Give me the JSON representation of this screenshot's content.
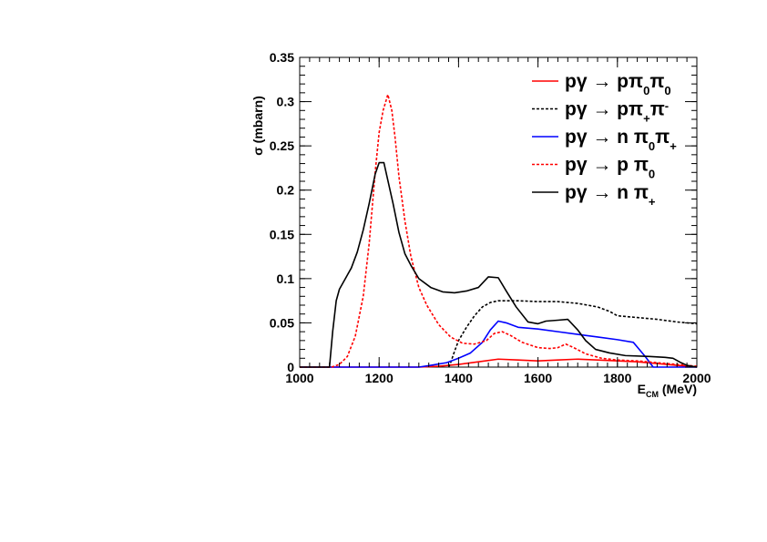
{
  "chart_data": {
    "type": "line",
    "xlabel": {
      "main": "E",
      "sub": "CM",
      "rest": " (MeV)"
    },
    "ylabel": "σ (mbarn)",
    "xlim": [
      1000,
      2000
    ],
    "ylim": [
      0,
      0.35
    ],
    "xticks": [
      1000,
      1200,
      1400,
      1600,
      1800,
      2000
    ],
    "yticks": [
      0,
      0.05,
      0.1,
      0.15,
      0.2,
      0.25,
      0.3,
      0.35
    ],
    "ytick_labels": [
      "0",
      "0.05",
      "0.1",
      "0.15",
      "0.2",
      "0.25",
      "0.3",
      "0.35"
    ],
    "grid": false,
    "legend_position": "top-right",
    "series": [
      {
        "name": "pγ → pπ0π0",
        "legend": {
          "pre": "pγ → pπ",
          "parts": [
            [
              "sub",
              "0"
            ],
            [
              "main",
              "π"
            ],
            [
              "sub",
              "0"
            ]
          ]
        },
        "color": "#ff0000",
        "dash": "solid",
        "points": [
          [
            1000,
            0
          ],
          [
            1300,
            0
          ],
          [
            1350,
            0.001
          ],
          [
            1400,
            0.003
          ],
          [
            1450,
            0.006
          ],
          [
            1500,
            0.009
          ],
          [
            1550,
            0.008
          ],
          [
            1600,
            0.007
          ],
          [
            1650,
            0.008
          ],
          [
            1700,
            0.009
          ],
          [
            1750,
            0.008
          ],
          [
            1800,
            0.007
          ],
          [
            1850,
            0.006
          ],
          [
            1900,
            0.004
          ],
          [
            1950,
            0.002
          ],
          [
            2000,
            0
          ]
        ]
      },
      {
        "name": "pγ → pπ+π-",
        "legend": {
          "pre": "pγ → pπ",
          "parts": [
            [
              "sub",
              "+"
            ],
            [
              "main",
              "π"
            ],
            [
              "sup",
              "-"
            ]
          ]
        },
        "color": "#000000",
        "dash": "dotted",
        "points": [
          [
            1375,
            0
          ],
          [
            1380,
            0.005
          ],
          [
            1390,
            0.018
          ],
          [
            1400,
            0.03
          ],
          [
            1420,
            0.045
          ],
          [
            1440,
            0.058
          ],
          [
            1460,
            0.068
          ],
          [
            1480,
            0.073
          ],
          [
            1500,
            0.075
          ],
          [
            1550,
            0.075
          ],
          [
            1600,
            0.074
          ],
          [
            1650,
            0.074
          ],
          [
            1700,
            0.072
          ],
          [
            1750,
            0.068
          ],
          [
            1780,
            0.063
          ],
          [
            1800,
            0.058
          ],
          [
            1850,
            0.056
          ],
          [
            1900,
            0.054
          ],
          [
            1950,
            0.051
          ],
          [
            2000,
            0.049
          ]
        ]
      },
      {
        "name": "pγ → n π0π+",
        "legend": {
          "pre": "pγ → n π",
          "parts": [
            [
              "sub",
              "0"
            ],
            [
              "main",
              "π"
            ],
            [
              "sub",
              "+"
            ]
          ]
        },
        "color": "#0000ff",
        "dash": "solid",
        "points": [
          [
            1000,
            0
          ],
          [
            1300,
            0
          ],
          [
            1330,
            0.002
          ],
          [
            1370,
            0.005
          ],
          [
            1400,
            0.01
          ],
          [
            1430,
            0.016
          ],
          [
            1460,
            0.028
          ],
          [
            1480,
            0.042
          ],
          [
            1500,
            0.052
          ],
          [
            1520,
            0.05
          ],
          [
            1550,
            0.045
          ],
          [
            1600,
            0.043
          ],
          [
            1650,
            0.04
          ],
          [
            1700,
            0.037
          ],
          [
            1750,
            0.034
          ],
          [
            1800,
            0.031
          ],
          [
            1840,
            0.028
          ],
          [
            1870,
            0.012
          ],
          [
            1890,
            0
          ],
          [
            2000,
            0
          ]
        ]
      },
      {
        "name": "pγ → p π0",
        "legend": {
          "pre": "pγ → p π",
          "parts": [
            [
              "sub",
              "0"
            ]
          ]
        },
        "color": "#ff0000",
        "dash": "dotted",
        "points": [
          [
            1000,
            0
          ],
          [
            1080,
            0
          ],
          [
            1100,
            0.003
          ],
          [
            1120,
            0.012
          ],
          [
            1140,
            0.035
          ],
          [
            1160,
            0.08
          ],
          [
            1175,
            0.14
          ],
          [
            1190,
            0.22
          ],
          [
            1200,
            0.265
          ],
          [
            1210,
            0.29
          ],
          [
            1222,
            0.308
          ],
          [
            1232,
            0.29
          ],
          [
            1240,
            0.26
          ],
          [
            1250,
            0.215
          ],
          [
            1265,
            0.165
          ],
          [
            1280,
            0.125
          ],
          [
            1300,
            0.09
          ],
          [
            1320,
            0.07
          ],
          [
            1350,
            0.048
          ],
          [
            1380,
            0.034
          ],
          [
            1410,
            0.027
          ],
          [
            1440,
            0.026
          ],
          [
            1470,
            0.03
          ],
          [
            1490,
            0.038
          ],
          [
            1510,
            0.04
          ],
          [
            1530,
            0.036
          ],
          [
            1560,
            0.028
          ],
          [
            1600,
            0.022
          ],
          [
            1630,
            0.021
          ],
          [
            1650,
            0.022
          ],
          [
            1670,
            0.026
          ],
          [
            1690,
            0.022
          ],
          [
            1720,
            0.015
          ],
          [
            1760,
            0.01
          ],
          [
            1800,
            0.008
          ],
          [
            1850,
            0.007
          ],
          [
            1900,
            0.005
          ],
          [
            1950,
            0.003
          ],
          [
            2000,
            0.001
          ]
        ]
      },
      {
        "name": "pγ → n π+",
        "legend": {
          "pre": "pγ → n π",
          "parts": [
            [
              "sub",
              "+"
            ]
          ]
        },
        "color": "#000000",
        "dash": "solid",
        "points": [
          [
            1000,
            0
          ],
          [
            1075,
            0
          ],
          [
            1083,
            0.04
          ],
          [
            1092,
            0.075
          ],
          [
            1100,
            0.088
          ],
          [
            1115,
            0.1
          ],
          [
            1130,
            0.112
          ],
          [
            1145,
            0.13
          ],
          [
            1160,
            0.155
          ],
          [
            1175,
            0.185
          ],
          [
            1190,
            0.218
          ],
          [
            1200,
            0.231
          ],
          [
            1212,
            0.231
          ],
          [
            1220,
            0.215
          ],
          [
            1235,
            0.185
          ],
          [
            1250,
            0.152
          ],
          [
            1265,
            0.128
          ],
          [
            1280,
            0.115
          ],
          [
            1300,
            0.1
          ],
          [
            1330,
            0.09
          ],
          [
            1360,
            0.085
          ],
          [
            1390,
            0.084
          ],
          [
            1420,
            0.086
          ],
          [
            1450,
            0.09
          ],
          [
            1475,
            0.102
          ],
          [
            1500,
            0.101
          ],
          [
            1520,
            0.086
          ],
          [
            1545,
            0.068
          ],
          [
            1575,
            0.051
          ],
          [
            1600,
            0.049
          ],
          [
            1620,
            0.052
          ],
          [
            1650,
            0.053
          ],
          [
            1675,
            0.054
          ],
          [
            1700,
            0.042
          ],
          [
            1720,
            0.03
          ],
          [
            1745,
            0.02
          ],
          [
            1780,
            0.016
          ],
          [
            1820,
            0.013
          ],
          [
            1880,
            0.012
          ],
          [
            1920,
            0.011
          ],
          [
            1940,
            0.01
          ],
          [
            1960,
            0.005
          ],
          [
            1975,
            0.002
          ],
          [
            2000,
            0
          ]
        ]
      }
    ]
  }
}
